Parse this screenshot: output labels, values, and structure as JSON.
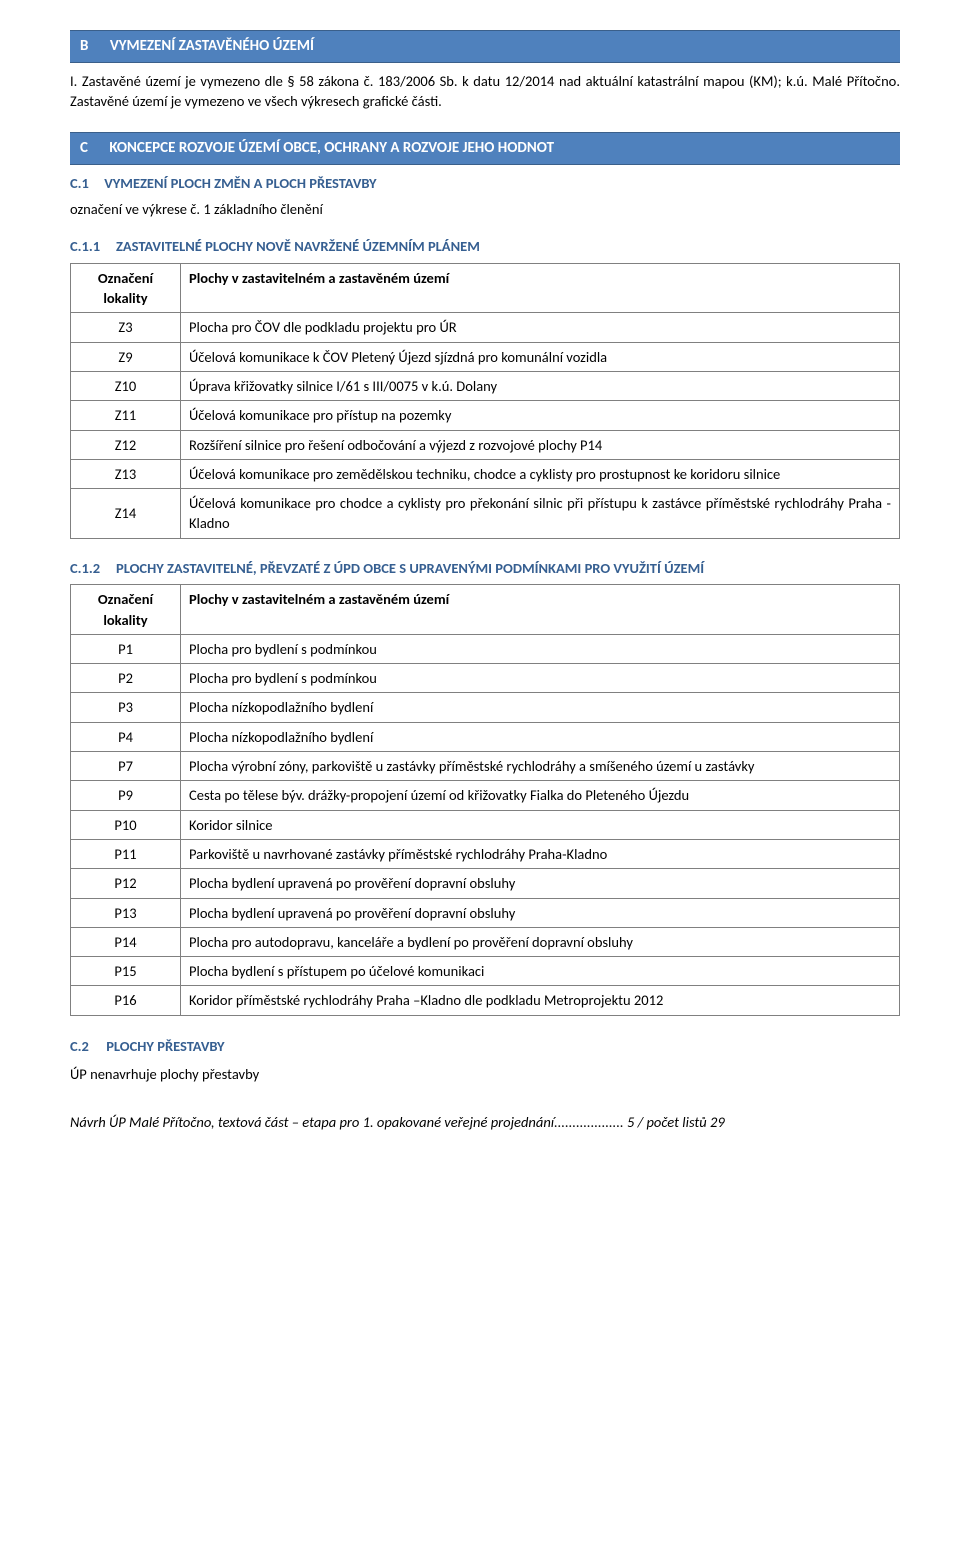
{
  "colors": {
    "header_bg": "#4f81bd",
    "heading_text": "#365f91",
    "border": "#808080",
    "body_text": "#000000",
    "background": "#ffffff"
  },
  "fonts": {
    "body_size": 14.5,
    "header_size": 15,
    "family": "Calibri"
  },
  "sectionB": {
    "letter": "B",
    "title": "VYMEZENÍ ZASTAVĚNÉHO ÚZEMÍ",
    "body": "I. Zastavěné území je vymezeno dle § 58 zákona č. 183/2006 Sb. k datu 12/2014 nad aktuální katastrální mapou (KM); k.ú. Malé Přítočno. Zastavěné území je vymezeno ve všech výkresech grafické části."
  },
  "sectionC": {
    "letter": "C",
    "title": "KONCEPCE ROZVOJE ÚZEMÍ OBCE, OCHRANY A ROZVOJE JEHO HODNOT",
    "c1": {
      "num": "C.1",
      "title": "VYMEZENÍ PLOCH ZMĚN A PLOCH PŘESTAVBY",
      "text": "označení ve výkrese č. 1 základního členění"
    },
    "c11": {
      "num": "C.1.1",
      "title": "ZASTAVITELNÉ PLOCHY NOVĚ NAVRŽENÉ ÚZEMNÍM PLÁNEM",
      "header_col1": "Označení lokality",
      "header_col2": "Plochy v zastavitelném a zastavěném území",
      "rows": [
        {
          "k": "Z3",
          "v": "Plocha pro ČOV dle podkladu projektu pro ÚR"
        },
        {
          "k": "Z9",
          "v": "Účelová komunikace k ČOV Pletený Újezd sjízdná pro komunální vozidla"
        },
        {
          "k": "Z10",
          "v": "Úprava křižovatky silnice I/61 s III/0075 v k.ú. Dolany"
        },
        {
          "k": "Z11",
          "v": "Účelová  komunikace pro přístup na pozemky"
        },
        {
          "k": "Z12",
          "v": "Rozšíření silnice pro řešení odbočování a výjezd z rozvojové plochy P14"
        },
        {
          "k": "Z13",
          "v": "Účelová komunikace pro zemědělskou techniku, chodce a cyklisty pro prostupnost ke koridoru silnice"
        },
        {
          "k": "Z14",
          "v": "Účelová komunikace pro chodce a cyklisty pro překonání silnic při přístupu k zastávce příměstské rychlodráhy Praha - Kladno"
        }
      ]
    },
    "c12": {
      "num": "C.1.2",
      "title": "PLOCHY ZASTAVITELNÉ, PŘEVZATÉ Z ÚPD OBCE S UPRAVENÝMI PODMÍNKAMI PRO VYUŽITÍ ÚZEMÍ",
      "header_col1": "Označení lokality",
      "header_col2": "Plochy v zastavitelném a zastavěném území",
      "rows": [
        {
          "k": "P1",
          "v": "Plocha pro bydlení s podmínkou"
        },
        {
          "k": "P2",
          "v": "Plocha pro bydlení s podmínkou"
        },
        {
          "k": "P3",
          "v": "Plocha nízkopodlažního bydlení"
        },
        {
          "k": "P4",
          "v": "Plocha nízkopodlažního bydlení"
        },
        {
          "k": "P7",
          "v": "Plocha výrobní zóny, parkoviště u zastávky příměstské rychlodráhy a smíšeného území u zastávky"
        },
        {
          "k": "P9",
          "v": "Cesta po tělese býv. drážky-propojení území od křižovatky Fialka do Pleteného Újezdu"
        },
        {
          "k": "P10",
          "v": "Koridor silnice"
        },
        {
          "k": "P11",
          "v": "Parkoviště u navrhované zastávky příměstské rychlodráhy Praha-Kladno"
        },
        {
          "k": "P12",
          "v": "Plocha bydlení upravená po prověření dopravní obsluhy"
        },
        {
          "k": "P13",
          "v": "Plocha bydlení upravená po prověření dopravní obsluhy"
        },
        {
          "k": "P14",
          "v": "Plocha pro autodopravu, kanceláře a bydlení po prověření dopravní obsluhy"
        },
        {
          "k": "P15",
          "v": "Plocha bydlení s přístupem po účelové komunikaci"
        },
        {
          "k": "P16",
          "v": "Koridor příměstské rychlodráhy Praha –Kladno dle podkladu Metroprojektu 2012"
        }
      ]
    },
    "c2": {
      "num": "C.2",
      "title": "PLOCHY PŘESTAVBY",
      "text": "ÚP nenavrhuje plochy přestavby"
    }
  },
  "footer": "Návrh ÚP Malé Přítočno, textová část – etapa pro 1. opakované veřejné projednání................... 5 / počet listů 29"
}
